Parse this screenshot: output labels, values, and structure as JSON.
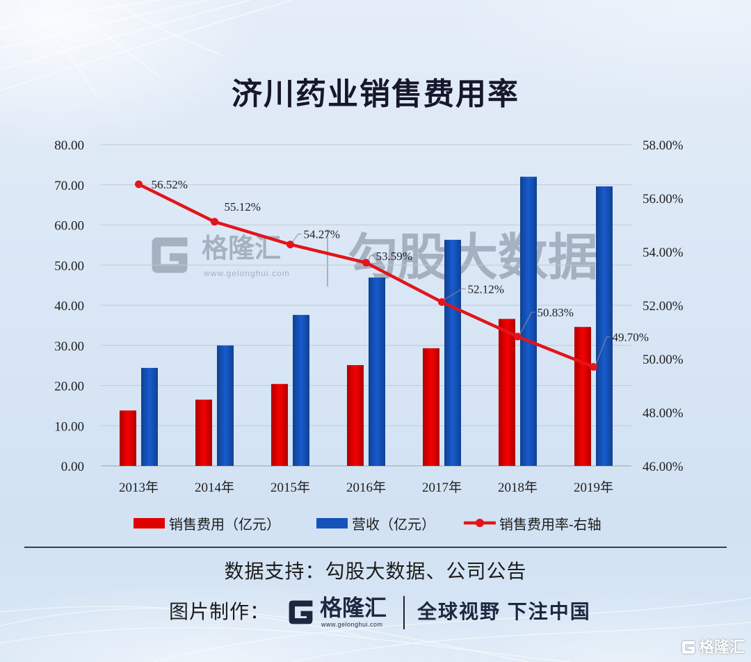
{
  "chart_data": {
    "type": "bar",
    "title": "济川药业销售费用率",
    "categories": [
      "2013年",
      "2014年",
      "2015年",
      "2016年",
      "2017年",
      "2018年",
      "2019年"
    ],
    "series": [
      {
        "name": "销售费用（亿元）",
        "type": "bar",
        "axis": "left",
        "color": "#e00000",
        "values": [
          13.8,
          16.5,
          20.4,
          25.1,
          29.3,
          36.6,
          34.6
        ]
      },
      {
        "name": "营收（亿元）",
        "type": "bar",
        "axis": "left",
        "color": "#1553bb",
        "values": [
          24.4,
          30.0,
          37.6,
          46.9,
          56.3,
          72.0,
          69.6
        ]
      },
      {
        "name": "销售费用率-右轴",
        "type": "line",
        "axis": "right",
        "color": "#e3141b",
        "values": [
          56.52,
          55.12,
          54.27,
          53.59,
          52.12,
          50.83,
          49.7
        ]
      }
    ],
    "y_left": {
      "min": 0,
      "max": 80,
      "ticks": [
        "0.00",
        "10.00",
        "20.00",
        "30.00",
        "40.00",
        "50.00",
        "60.00",
        "70.00",
        "80.00"
      ]
    },
    "y_right": {
      "min": 46,
      "max": 58,
      "ticks": [
        "46.00%",
        "48.00%",
        "50.00%",
        "52.00%",
        "54.00%",
        "56.00%",
        "58.00%"
      ]
    },
    "grid": true,
    "legend": "bottom"
  },
  "watermark": {
    "brand": "格隆汇",
    "url": "www.gelonghui.com",
    "product": "勾股大数据"
  },
  "footer": {
    "source": "数据支持：勾股大数据、公司公告",
    "credit_label": "图片制作：",
    "brand": "格隆汇",
    "url": "www.gelonghui.com",
    "slogan": "全球视野 下注中国"
  },
  "corner_logo": {
    "brand": "格隆汇"
  },
  "icons": {
    "logo": "gelonghui-g-logo-icon"
  }
}
